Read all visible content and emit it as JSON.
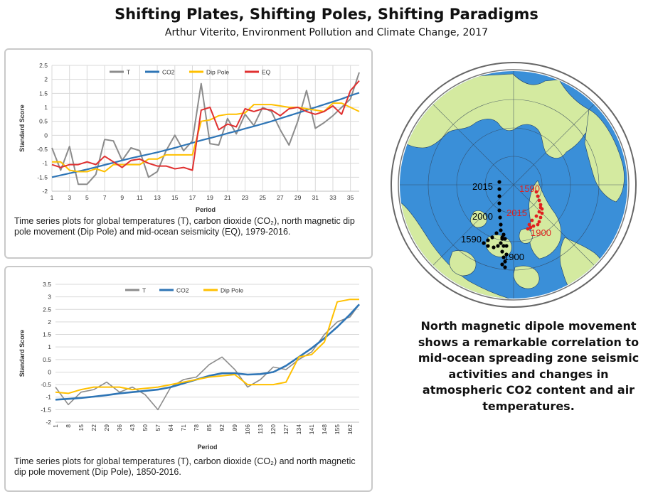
{
  "header": {
    "title": "Shifting Plates, Shifting Poles, Shifting Paradigms",
    "subtitle": "Arthur Viterito, Environment Pollution and Climate Change, 2017"
  },
  "colors": {
    "T": "#8c8c8c",
    "CO2": "#2e75b6",
    "Dip Pole": "#ffc000",
    "EQ": "#e03030"
  },
  "chart_data": [
    {
      "type": "line",
      "title": "",
      "xlabel": "Period",
      "ylabel": "Standard Score",
      "ylim": [
        -2,
        2.5
      ],
      "xlim": [
        1,
        36
      ],
      "yticks": [
        "-2",
        "-1.5",
        "-1",
        "-0.5",
        "0",
        "0.5",
        "1",
        "1.5",
        "2",
        "2.5"
      ],
      "xticks": [
        "1",
        "3",
        "5",
        "7",
        "9",
        "11",
        "13",
        "15",
        "17",
        "19",
        "21",
        "23",
        "25",
        "27",
        "29",
        "31",
        "33",
        "35"
      ],
      "legend": [
        "T",
        "CO2",
        "Dip Pole",
        "EQ"
      ],
      "legend_position": "top",
      "x": [
        1,
        2,
        3,
        4,
        5,
        6,
        7,
        8,
        9,
        10,
        11,
        12,
        13,
        14,
        15,
        16,
        17,
        18,
        19,
        20,
        21,
        22,
        23,
        24,
        25,
        26,
        27,
        28,
        29,
        30,
        31,
        32,
        33,
        34,
        35,
        36
      ],
      "series": [
        {
          "name": "T",
          "values": [
            -0.45,
            -1.25,
            -0.4,
            -1.75,
            -1.75,
            -1.4,
            -0.15,
            -0.2,
            -0.9,
            -0.45,
            -0.55,
            -1.5,
            -1.3,
            -0.55,
            0.0,
            -0.55,
            -0.2,
            1.85,
            -0.3,
            -0.35,
            0.6,
            0.05,
            0.75,
            0.35,
            1.0,
            0.85,
            0.2,
            -0.35,
            0.5,
            1.6,
            0.25,
            0.45,
            0.7,
            1.0,
            1.3,
            2.25
          ]
        },
        {
          "name": "CO2",
          "values": [
            -1.5,
            -1.43,
            -1.36,
            -1.29,
            -1.22,
            -1.14,
            -1.06,
            -0.98,
            -0.9,
            -0.82,
            -0.75,
            -0.68,
            -0.61,
            -0.53,
            -0.45,
            -0.36,
            -0.27,
            -0.18,
            -0.1,
            -0.02,
            0.07,
            0.15,
            0.24,
            0.32,
            0.41,
            0.5,
            0.6,
            0.7,
            0.8,
            0.9,
            1.0,
            1.1,
            1.2,
            1.3,
            1.42,
            1.52
          ]
        },
        {
          "name": "Dip Pole",
          "values": [
            -0.95,
            -0.95,
            -1.25,
            -1.3,
            -1.3,
            -1.2,
            -1.3,
            -1.05,
            -1.05,
            -1.05,
            -1.05,
            -0.85,
            -0.85,
            -0.7,
            -0.7,
            -0.7,
            -0.7,
            0.5,
            0.55,
            0.7,
            0.75,
            0.75,
            0.8,
            1.1,
            1.1,
            1.1,
            1.05,
            1.0,
            1.0,
            0.95,
            0.9,
            0.85,
            1.15,
            1.15,
            1.0,
            0.85
          ]
        },
        {
          "name": "EQ",
          "values": [
            -1.05,
            -1.15,
            -1.05,
            -1.05,
            -0.95,
            -1.05,
            -0.75,
            -0.95,
            -1.15,
            -0.9,
            -0.85,
            -1.0,
            -1.1,
            -1.1,
            -1.2,
            -1.15,
            -1.25,
            0.9,
            1.0,
            0.2,
            0.4,
            0.3,
            0.95,
            0.85,
            0.95,
            0.9,
            0.7,
            0.95,
            1.0,
            0.85,
            0.75,
            0.85,
            1.05,
            0.75,
            1.6,
            1.95
          ]
        }
      ],
      "caption": "Time series plots for global temperatures (T), carbon dioxide (CO₂), north magnetic dip pole movement (Dip Pole) and mid-ocean seismicity (EQ), 1979-2016."
    },
    {
      "type": "line",
      "title": "",
      "xlabel": "Period",
      "ylabel": "Standard Score",
      "ylim": [
        -2,
        3.5
      ],
      "xlim": [
        1,
        167
      ],
      "yticks": [
        "-2",
        "-1.5",
        "-1",
        "-0.5",
        "0",
        "0.5",
        "1",
        "1.5",
        "2",
        "2.5",
        "3",
        "3.5"
      ],
      "xticks": [
        "1",
        "8",
        "15",
        "22",
        "29",
        "36",
        "43",
        "50",
        "57",
        "64",
        "71",
        "78",
        "85",
        "92",
        "99",
        "106",
        "113",
        "120",
        "127",
        "134",
        "141",
        "148",
        "155",
        "162"
      ],
      "legend": [
        "T",
        "CO2",
        "Dip Pole"
      ],
      "legend_position": "top",
      "x": [
        1,
        8,
        15,
        22,
        29,
        36,
        43,
        50,
        57,
        64,
        71,
        78,
        85,
        92,
        99,
        106,
        113,
        120,
        127,
        134,
        141,
        148,
        155,
        162,
        167
      ],
      "series": [
        {
          "name": "T",
          "values": [
            -0.6,
            -1.3,
            -0.8,
            -0.7,
            -0.4,
            -0.8,
            -0.6,
            -0.9,
            -1.5,
            -0.6,
            -0.3,
            -0.2,
            0.3,
            0.6,
            0.1,
            -0.6,
            -0.3,
            0.2,
            0.1,
            0.5,
            0.8,
            1.5,
            2.0,
            2.2,
            2.7
          ]
        },
        {
          "name": "CO2",
          "values": [
            -1.1,
            -1.07,
            -1.03,
            -0.98,
            -0.92,
            -0.85,
            -0.8,
            -0.75,
            -0.7,
            -0.6,
            -0.45,
            -0.3,
            -0.15,
            -0.05,
            -0.05,
            -0.1,
            -0.08,
            0.0,
            0.25,
            0.6,
            0.95,
            1.35,
            1.8,
            2.3,
            2.7
          ]
        },
        {
          "name": "Dip Pole",
          "values": [
            -0.8,
            -0.85,
            -0.7,
            -0.6,
            -0.6,
            -0.6,
            -0.7,
            -0.65,
            -0.6,
            -0.5,
            -0.4,
            -0.3,
            -0.2,
            -0.15,
            -0.1,
            -0.5,
            -0.5,
            -0.5,
            -0.4,
            0.6,
            0.7,
            1.2,
            2.8,
            2.9,
            2.9
          ]
        }
      ],
      "caption": "Time series plots for global temperatures (T), carbon dioxide (CO₂) and north magnetic dip pole movement (Dip Pole), 1850-2016."
    }
  ],
  "map": {
    "labels": {
      "black_2015": "2015",
      "black_2000": "2000",
      "black_1590": "1590",
      "black_1900": "1900",
      "red_1590": "1590",
      "red_2015": "2015",
      "red_1900": "1900"
    },
    "colors": {
      "ocean": "#3a8fd8",
      "land": "#d4eaa0",
      "black_track": "#000000",
      "red_track": "#e02020"
    }
  },
  "description": "North magnetic dipole movement shows a remarkable correlation to mid-ocean spreading zone seismic activities and changes in atmospheric CO2 content and air temperatures."
}
